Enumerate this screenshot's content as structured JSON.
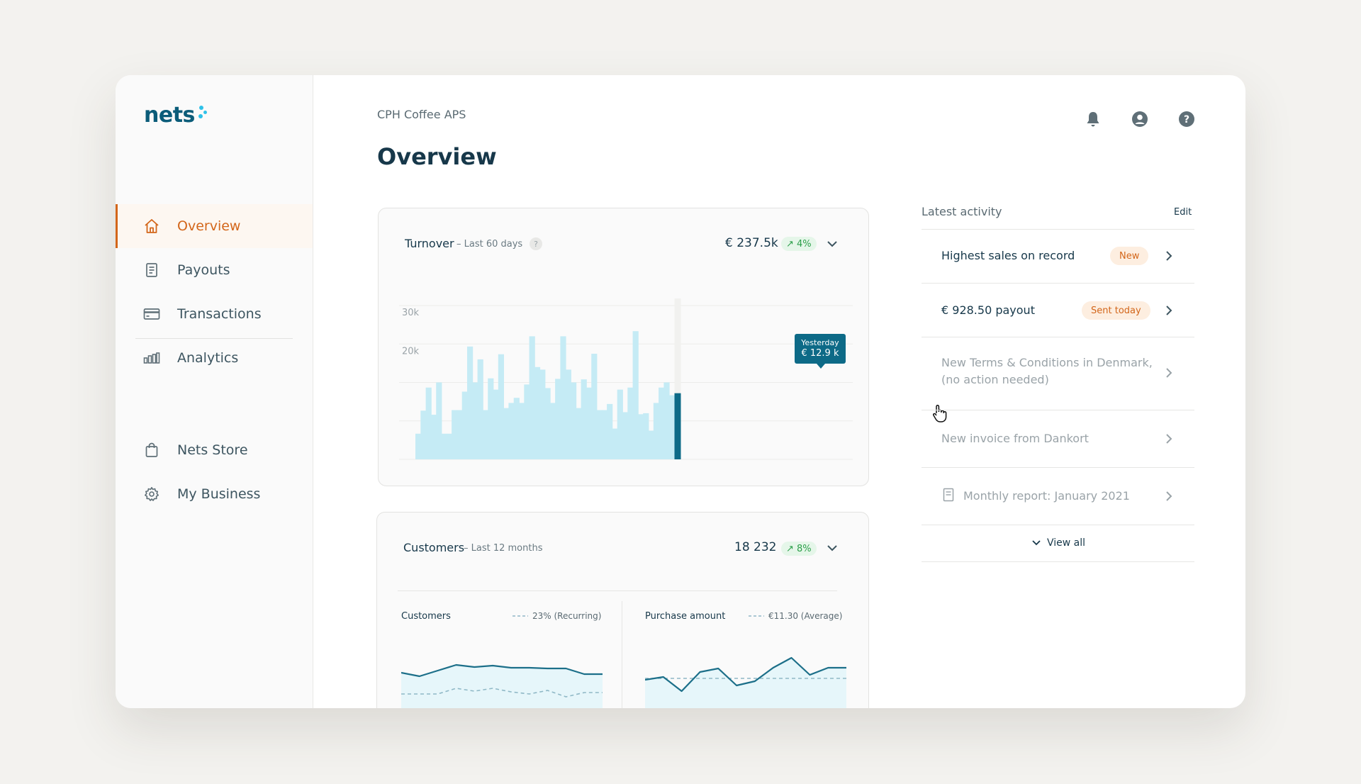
{
  "brand": {
    "name": "nets",
    "accent": "#d3661a",
    "primary": "#0b5c79",
    "dot": "#2ec1e8"
  },
  "sidebar": {
    "items": [
      {
        "label": "Overview",
        "icon": "home-icon"
      },
      {
        "label": "Payouts",
        "icon": "document-icon"
      },
      {
        "label": "Transactions",
        "icon": "card-icon"
      },
      {
        "label": "Analytics",
        "icon": "bar-chart-icon"
      },
      {
        "label": "Nets Store",
        "icon": "bag-icon"
      },
      {
        "label": "My Business",
        "icon": "gear-icon"
      }
    ]
  },
  "header": {
    "company": "CPH Coffee APS",
    "title": "Overview",
    "icons": [
      "bell-icon",
      "user-icon",
      "help-icon"
    ]
  },
  "turnover": {
    "title": "Turnover",
    "subtitle": "– Last 60 days",
    "help": "?",
    "value": "€ 237.5k",
    "change": "↗ 4%",
    "tooltip_label": "Yesterday",
    "tooltip_value": "€ 12.9 k"
  },
  "customers": {
    "title": "Customers",
    "subtitle": "– Last 12 months",
    "value": "18 232",
    "change": "↗ 8%",
    "left": {
      "title": "Customers",
      "legend": "23% (Recurring)"
    },
    "right": {
      "title": "Purchase amount",
      "legend": "€11.30 (Average)"
    }
  },
  "chart_data": [
    {
      "type": "bar",
      "yticks": [
        "30k",
        "20k"
      ],
      "ylim": [
        0,
        30000
      ],
      "values": [
        5000,
        9500,
        14000,
        8700,
        15000,
        5000,
        5000,
        9600,
        9600,
        13200,
        22000,
        15000,
        19500,
        9600,
        15800,
        13600,
        20500,
        10000,
        11000,
        12000,
        11000,
        14600,
        24000,
        18000,
        17500,
        13900,
        11000,
        15700,
        24000,
        17500,
        15000,
        10000,
        15600,
        14000,
        20600,
        9600,
        9600,
        10800,
        6000,
        13600,
        9200,
        14000,
        25000,
        8800,
        9000,
        5600,
        11000,
        14000,
        15000,
        12500
      ],
      "highlight_value": 12900,
      "highlight_label": "Yesterday"
    },
    {
      "type": "area",
      "title": "Customers",
      "series": [
        {
          "name": "Customers",
          "values": [
            72,
            67,
            75,
            83,
            80,
            82,
            79,
            79,
            78,
            78,
            70,
            70
          ]
        },
        {
          "name": "23% (Recurring)",
          "values": [
            42,
            42,
            42,
            50,
            46,
            50,
            45,
            42,
            47,
            38,
            44,
            44
          ]
        }
      ],
      "ylim": [
        0,
        100
      ]
    },
    {
      "type": "area",
      "title": "Purchase amount",
      "series": [
        {
          "name": "Purchase amount",
          "values": [
            62,
            66,
            46,
            73,
            78,
            54,
            60,
            79,
            93,
            69,
            79,
            79
          ]
        },
        {
          "name": "€11.30 (Average)",
          "values": [
            64,
            64,
            64,
            64,
            64,
            64,
            64,
            64,
            64,
            64,
            64,
            64
          ]
        }
      ],
      "ylim": [
        0,
        100
      ]
    }
  ],
  "activity": {
    "title": "Latest activity",
    "edit": "Edit",
    "items": [
      {
        "text": "Highest sales on record",
        "badge": "New"
      },
      {
        "text": "€ 928.50 payout",
        "badge": "Sent today"
      },
      {
        "text": "New Terms & Conditions in Denmark, (no action needed)"
      },
      {
        "text": "New invoice from Dankort"
      },
      {
        "text": "Monthly report: January 2021",
        "icon": "document-icon"
      }
    ],
    "view_all": "View all"
  }
}
